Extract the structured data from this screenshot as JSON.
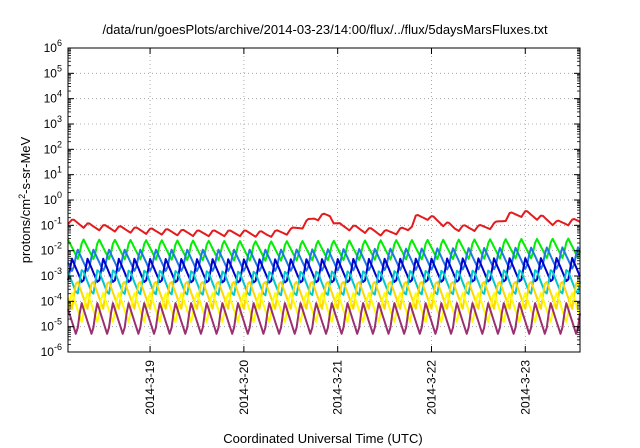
{
  "chart_data": {
    "type": "line",
    "title": "/data/run/goesPlots/archive/2014-03-23/14:00/flux/../flux/5daysMarsFluxes.txt",
    "xlabel": "Coordinated Universal Time (UTC)",
    "ylabel": "protons/cm²-s-sr-MeV",
    "y_scale": "log",
    "ylim": [
      1e-06,
      1000000.0
    ],
    "xlim": [
      "2014-03-18 03:00",
      "2014-03-23 14:00"
    ],
    "grid": true,
    "x_ticks": [
      {
        "x": "2014-03-19",
        "label": "2014-3-19"
      },
      {
        "x": "2014-03-20",
        "label": "2014-3-20"
      },
      {
        "x": "2014-03-21",
        "label": "2014-3-21"
      },
      {
        "x": "2014-03-22",
        "label": "2014-3-22"
      },
      {
        "x": "2014-03-23",
        "label": "2014-3-23"
      }
    ],
    "y_ticks": [
      {
        "value": 1e-06,
        "base": "10",
        "exp": "-6"
      },
      {
        "value": 1e-05,
        "base": "10",
        "exp": "-5"
      },
      {
        "value": 0.0001,
        "base": "10",
        "exp": "-4"
      },
      {
        "value": 0.001,
        "base": "10",
        "exp": "-3"
      },
      {
        "value": 0.01,
        "base": "10",
        "exp": "-2"
      },
      {
        "value": 0.1,
        "base": "10",
        "exp": "-1"
      },
      {
        "value": 1,
        "base": "10",
        "exp": "0"
      },
      {
        "value": 10,
        "base": "10",
        "exp": "1"
      },
      {
        "value": 100,
        "base": "10",
        "exp": "2"
      },
      {
        "value": 1000,
        "base": "10",
        "exp": "3"
      },
      {
        "value": 10000,
        "base": "10",
        "exp": "4"
      },
      {
        "value": 100000,
        "base": "10",
        "exp": "5"
      },
      {
        "value": 1000000,
        "base": "10",
        "exp": "6"
      }
    ],
    "series": [
      {
        "color": "#e41a1c",
        "values": [
          [
            "2014-03-18 03:00",
            0.15
          ],
          [
            "2014-03-18 09:00",
            0.09
          ],
          [
            "2014-03-18 18:00",
            0.07
          ],
          [
            "2014-03-19 00:00",
            0.06
          ],
          [
            "2014-03-19 12:00",
            0.05
          ],
          [
            "2014-03-20 00:00",
            0.05
          ],
          [
            "2014-03-20 06:00",
            0.045
          ],
          [
            "2014-03-20 12:00",
            0.06
          ],
          [
            "2014-03-20 15:00",
            0.1
          ],
          [
            "2014-03-20 18:00",
            0.2
          ],
          [
            "2014-03-20 22:00",
            0.25
          ],
          [
            "2014-03-21 00:00",
            0.1
          ],
          [
            "2014-03-21 12:00",
            0.05
          ],
          [
            "2014-03-21 18:00",
            0.07
          ],
          [
            "2014-03-21 20:00",
            0.2
          ],
          [
            "2014-03-21 23:00",
            0.22
          ],
          [
            "2014-03-22 06:00",
            0.08
          ],
          [
            "2014-03-22 12:00",
            0.08
          ],
          [
            "2014-03-22 16:00",
            0.1
          ],
          [
            "2014-03-22 20:00",
            0.25
          ],
          [
            "2014-03-23 00:00",
            0.3
          ],
          [
            "2014-03-23 04:00",
            0.2
          ],
          [
            "2014-03-23 08:00",
            0.12
          ],
          [
            "2014-03-23 14:00",
            0.15
          ]
        ]
      },
      {
        "color": "#00ee00",
        "values": [
          [
            "2014-03-18 03:00",
            0.012
          ],
          [
            "2014-03-20 06:00",
            0.01
          ],
          [
            "2014-03-23 14:00",
            0.013
          ]
        ]
      },
      {
        "color": "#1e78e6",
        "values": [
          [
            "2014-03-18 03:00",
            0.004
          ],
          [
            "2014-03-20 06:00",
            0.004
          ],
          [
            "2014-03-23 14:00",
            0.005
          ]
        ]
      },
      {
        "color": "#0000cc",
        "values": [
          [
            "2014-03-18 03:00",
            0.0015
          ],
          [
            "2014-03-20 06:00",
            0.0014
          ],
          [
            "2014-03-23 14:00",
            0.0016
          ]
        ]
      },
      {
        "color": "#00c8c8",
        "values": [
          [
            "2014-03-18 03:00",
            0.0006
          ],
          [
            "2014-03-20 06:00",
            0.0005
          ],
          [
            "2014-03-23 14:00",
            0.0006
          ]
        ]
      },
      {
        "color": "#ffd700",
        "values": [
          [
            "2014-03-18 03:00",
            0.0002
          ],
          [
            "2014-03-20 06:00",
            0.0002
          ],
          [
            "2014-03-23 14:00",
            0.0002
          ]
        ]
      },
      {
        "color": "#ffff00",
        "values": [
          [
            "2014-03-18 03:00",
            6e-05
          ],
          [
            "2014-03-20 06:00",
            6e-05
          ],
          [
            "2014-03-23 14:00",
            6e-05
          ]
        ]
      },
      {
        "color": "#9b3070",
        "values": [
          [
            "2014-03-18 03:00",
            2e-05
          ],
          [
            "2014-03-20 06:00",
            2e-05
          ],
          [
            "2014-03-23 14:00",
            2e-05
          ]
        ]
      }
    ]
  }
}
